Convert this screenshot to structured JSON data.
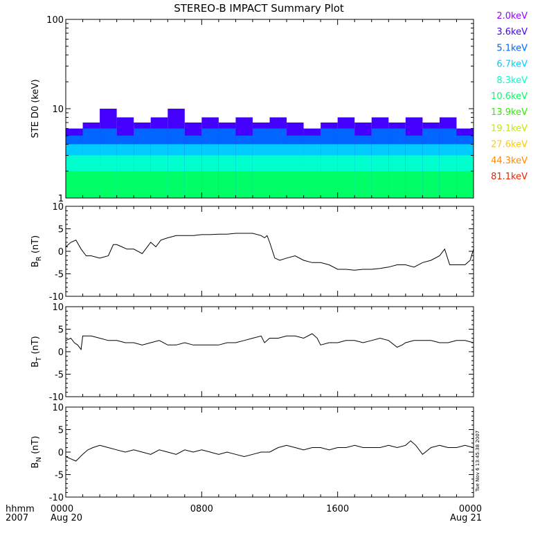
{
  "title": "STEREO-B IMPACT Summary Plot",
  "stamp": "Tue Nov  6 13:45:38 2007",
  "time_axis": {
    "label_top": "hhmm",
    "label_bottom": "2007",
    "ticks": [
      {
        "hour": 0,
        "top": "0000",
        "bottom": "Aug 20"
      },
      {
        "hour": 8,
        "top": "0800",
        "bottom": ""
      },
      {
        "hour": 16,
        "top": "1600",
        "bottom": ""
      },
      {
        "hour": 24,
        "top": "0000",
        "bottom": "Aug 21"
      }
    ]
  },
  "colors": {
    "axis": "#000000",
    "trace": "#000000",
    "energies": [
      "#9900ff",
      "#4400ff",
      "#0066ff",
      "#00ccff",
      "#00ffcc",
      "#00ff66",
      "#33ee00",
      "#bbee00",
      "#ffcc00",
      "#ff8800",
      "#ee2200"
    ]
  },
  "chart_data": [
    {
      "type": "bar",
      "name": "ste-d0",
      "ylabel": "STE D0 (keV)",
      "yscale": "log",
      "ylim": [
        1,
        100
      ],
      "xlim": [
        0,
        24
      ],
      "yticks": [
        {
          "v": 1,
          "t": "1"
        },
        {
          "v": 10,
          "t": "10"
        },
        {
          "v": 100,
          "t": "100"
        }
      ],
      "legend_position": "right",
      "legend": [
        "2.0keV",
        "3.6keV",
        "5.1keV",
        "6.7keV",
        "8.3keV",
        "10.6keV",
        "13.9keV",
        "19.1keV",
        "27.6keV",
        "44.3keV",
        "81.1keV"
      ],
      "bins": [
        {
          "hour": 0.0,
          "levels": [
            6,
            5,
            4,
            3,
            2,
            1
          ]
        },
        {
          "hour": 1.0,
          "levels": [
            7,
            6,
            4,
            3,
            2,
            1
          ]
        },
        {
          "hour": 2.0,
          "levels": [
            10,
            6,
            4,
            3,
            2,
            1
          ]
        },
        {
          "hour": 3.0,
          "levels": [
            8,
            5,
            4,
            3,
            2,
            1
          ]
        },
        {
          "hour": 4.0,
          "levels": [
            7,
            6,
            4,
            3,
            2,
            1
          ]
        },
        {
          "hour": 5.0,
          "levels": [
            8,
            6,
            4,
            3,
            2,
            1
          ]
        },
        {
          "hour": 6.0,
          "levels": [
            10,
            6,
            4,
            3,
            2,
            1
          ]
        },
        {
          "hour": 7.0,
          "levels": [
            7,
            5,
            4,
            3,
            2,
            1
          ]
        },
        {
          "hour": 8.0,
          "levels": [
            8,
            6,
            4,
            3,
            2,
            1
          ]
        },
        {
          "hour": 9.0,
          "levels": [
            7,
            6,
            4,
            3,
            2,
            1
          ]
        },
        {
          "hour": 10.0,
          "levels": [
            8,
            5,
            4,
            3,
            2,
            1
          ]
        },
        {
          "hour": 11.0,
          "levels": [
            7,
            6,
            4,
            3,
            2,
            1
          ]
        },
        {
          "hour": 12.0,
          "levels": [
            8,
            6,
            4,
            3,
            2,
            1
          ]
        },
        {
          "hour": 13.0,
          "levels": [
            7,
            5,
            4,
            3,
            2,
            1
          ]
        },
        {
          "hour": 14.0,
          "levels": [
            6,
            5,
            4,
            3,
            2,
            1
          ]
        },
        {
          "hour": 15.0,
          "levels": [
            7,
            6,
            4,
            3,
            2,
            1
          ]
        },
        {
          "hour": 16.0,
          "levels": [
            8,
            6,
            4,
            3,
            2,
            1
          ]
        },
        {
          "hour": 17.0,
          "levels": [
            7,
            5,
            4,
            3,
            2,
            1
          ]
        },
        {
          "hour": 18.0,
          "levels": [
            8,
            6,
            4,
            3,
            2,
            1
          ]
        },
        {
          "hour": 19.0,
          "levels": [
            7,
            6,
            4,
            3,
            2,
            1
          ]
        },
        {
          "hour": 20.0,
          "levels": [
            8,
            5,
            4,
            3,
            2,
            1
          ]
        },
        {
          "hour": 21.0,
          "levels": [
            7,
            6,
            4,
            3,
            2,
            1
          ]
        },
        {
          "hour": 22.0,
          "levels": [
            8,
            6,
            4,
            3,
            2,
            1
          ]
        },
        {
          "hour": 23.0,
          "levels": [
            6,
            5,
            4,
            3,
            2,
            1
          ]
        }
      ]
    },
    {
      "type": "line",
      "name": "br",
      "ylabel": "B",
      "ylabel_sub": "R",
      "yunit": "(nT)",
      "ylim": [
        -10,
        10
      ],
      "xlim": [
        0,
        24
      ],
      "yticks": [
        {
          "v": 10,
          "t": "10"
        },
        {
          "v": 5,
          "t": "5"
        },
        {
          "v": 0,
          "t": "0"
        },
        {
          "v": -5,
          "t": "-5"
        },
        {
          "v": -10,
          "t": "-10"
        }
      ],
      "x": [
        0,
        0.3,
        0.6,
        0.9,
        1.2,
        1.5,
        2.0,
        2.5,
        2.8,
        3.0,
        3.3,
        3.6,
        4.0,
        4.5,
        5.0,
        5.3,
        5.6,
        6.0,
        6.5,
        7.0,
        7.5,
        8.0,
        8.5,
        9.0,
        9.5,
        10.0,
        10.5,
        11.0,
        11.5,
        11.7,
        11.85,
        12.0,
        12.3,
        12.6,
        13.0,
        13.5,
        14.0,
        14.5,
        15.0,
        15.5,
        16.0,
        16.5,
        17.0,
        17.5,
        18.0,
        18.5,
        19.0,
        19.5,
        20.0,
        20.5,
        21.0,
        21.5,
        22.0,
        22.3,
        22.6,
        23.0,
        23.5,
        23.8,
        24.0
      ],
      "y": [
        1.0,
        2.0,
        2.5,
        0.5,
        -1.0,
        -1.0,
        -1.5,
        -1.0,
        1.5,
        1.5,
        1.0,
        0.5,
        0.5,
        -0.5,
        2.0,
        1.0,
        2.5,
        3.0,
        3.5,
        3.5,
        3.5,
        3.7,
        3.7,
        3.8,
        3.8,
        4.0,
        4.0,
        4.0,
        3.5,
        3.0,
        3.5,
        2.0,
        -1.5,
        -2.0,
        -1.5,
        -1.0,
        -2.0,
        -2.5,
        -2.5,
        -3.0,
        -4.0,
        -4.0,
        -4.2,
        -4.0,
        -4.0,
        -3.8,
        -3.5,
        -3.0,
        -3.0,
        -3.5,
        -2.5,
        -2.0,
        -1.0,
        0.5,
        -3.0,
        -3.0,
        -3.0,
        -2.0,
        0.5
      ]
    },
    {
      "type": "line",
      "name": "bt",
      "ylabel": "B",
      "ylabel_sub": "T",
      "yunit": "(nT)",
      "ylim": [
        -10,
        10
      ],
      "xlim": [
        0,
        24
      ],
      "yticks": [
        {
          "v": 10,
          "t": "10"
        },
        {
          "v": 5,
          "t": "5"
        },
        {
          "v": 0,
          "t": "0"
        },
        {
          "v": -5,
          "t": "-5"
        },
        {
          "v": -10,
          "t": "-10"
        }
      ],
      "x": [
        0,
        0.3,
        0.5,
        0.7,
        0.9,
        1.0,
        1.5,
        2.0,
        2.5,
        3.0,
        3.5,
        4.0,
        4.5,
        5.0,
        5.5,
        6.0,
        6.5,
        7.0,
        7.5,
        8.0,
        8.5,
        9.0,
        9.5,
        10.0,
        10.5,
        11.0,
        11.5,
        11.7,
        12.0,
        12.5,
        13.0,
        13.5,
        14.0,
        14.5,
        14.8,
        15.0,
        15.5,
        16.0,
        16.5,
        17.0,
        17.5,
        18.0,
        18.5,
        19.0,
        19.5,
        19.8,
        20.0,
        20.5,
        21.0,
        21.5,
        22.0,
        22.5,
        23.0,
        23.5,
        24.0
      ],
      "y": [
        2.5,
        3.0,
        2.0,
        1.5,
        0.5,
        3.5,
        3.5,
        3.0,
        2.5,
        2.5,
        2.0,
        2.0,
        1.5,
        2.0,
        2.5,
        1.5,
        1.5,
        2.0,
        1.5,
        1.5,
        1.5,
        1.5,
        2.0,
        2.0,
        2.5,
        3.0,
        3.5,
        2.0,
        3.0,
        3.0,
        3.5,
        3.5,
        3.0,
        4.0,
        3.0,
        1.5,
        2.0,
        2.0,
        2.5,
        2.5,
        2.0,
        2.5,
        3.0,
        2.5,
        1.0,
        1.5,
        2.0,
        2.5,
        2.5,
        2.5,
        2.0,
        2.0,
        2.5,
        2.5,
        2.0
      ]
    },
    {
      "type": "line",
      "name": "bn",
      "ylabel": "B",
      "ylabel_sub": "N",
      "yunit": "(nT)",
      "ylim": [
        -10,
        10
      ],
      "xlim": [
        0,
        24
      ],
      "yticks": [
        {
          "v": 10,
          "t": "10"
        },
        {
          "v": 5,
          "t": "5"
        },
        {
          "v": 0,
          "t": "0"
        },
        {
          "v": -5,
          "t": "-5"
        },
        {
          "v": -10,
          "t": "-10"
        }
      ],
      "x": [
        0,
        0.3,
        0.6,
        1.0,
        1.3,
        1.6,
        2.0,
        2.5,
        3.0,
        3.5,
        4.0,
        4.5,
        5.0,
        5.5,
        6.0,
        6.5,
        7.0,
        7.5,
        8.0,
        8.5,
        9.0,
        9.5,
        10.0,
        10.5,
        11.0,
        11.5,
        12.0,
        12.5,
        13.0,
        13.5,
        14.0,
        14.5,
        15.0,
        15.5,
        16.0,
        16.5,
        17.0,
        17.5,
        18.0,
        18.5,
        19.0,
        19.5,
        20.0,
        20.3,
        20.6,
        21.0,
        21.5,
        22.0,
        22.5,
        23.0,
        23.5,
        24.0
      ],
      "y": [
        -1.0,
        -1.5,
        -2.0,
        -0.5,
        0.5,
        1.0,
        1.5,
        1.0,
        0.5,
        0.0,
        0.5,
        0.0,
        -0.5,
        0.5,
        0.0,
        -0.5,
        0.5,
        0.0,
        0.5,
        0.0,
        -0.5,
        0.0,
        -0.5,
        -1.0,
        -0.5,
        0.0,
        0.0,
        1.0,
        1.5,
        1.0,
        0.5,
        1.0,
        1.0,
        0.5,
        1.0,
        1.0,
        1.5,
        1.0,
        1.0,
        1.0,
        1.5,
        1.0,
        1.5,
        2.5,
        1.5,
        -0.5,
        1.0,
        1.5,
        1.0,
        1.0,
        1.5,
        1.0
      ]
    }
  ]
}
